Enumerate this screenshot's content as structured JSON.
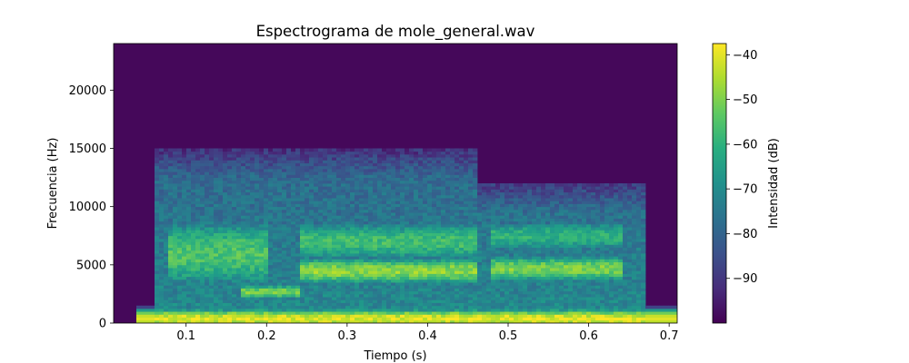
{
  "chart_data": {
    "type": "heatmap",
    "title": "Espectrograma de mole_general.wav",
    "xlabel": "Tiempo (s)",
    "ylabel": "Frecuencia (Hz)",
    "xlim": [
      0.01,
      0.71
    ],
    "ylim": [
      0,
      24000
    ],
    "x_ticks": [
      0.1,
      0.2,
      0.3,
      0.4,
      0.5,
      0.6,
      0.7
    ],
    "x_tick_labels": [
      "0.1",
      "0.2",
      "0.3",
      "0.4",
      "0.5",
      "0.6",
      "0.7"
    ],
    "y_ticks": [
      0,
      5000,
      10000,
      15000,
      20000
    ],
    "y_tick_labels": [
      "0",
      "5000",
      "10000",
      "15000",
      "20000"
    ],
    "colormap": "viridis",
    "colorbar": {
      "label": "Intensidad (dB)",
      "range": [
        -100,
        -37.5
      ],
      "ticks": [
        -40,
        -50,
        -60,
        -70,
        -80,
        -90
      ],
      "tick_labels": [
        "−40",
        "−50",
        "−60",
        "−70",
        "−80",
        "−90"
      ]
    },
    "background_db": -100,
    "segments": [
      {
        "t_start": 0.06,
        "t_end": 0.23,
        "f_max": 15000
      },
      {
        "t_start": 0.23,
        "t_end": 0.46,
        "f_max": 15000
      },
      {
        "t_start": 0.46,
        "t_end": 0.67,
        "f_max": 12000
      }
    ],
    "bands": [
      {
        "t_start": 0.04,
        "t_end": 0.71,
        "f_center": 400,
        "f_width": 600,
        "peak_db": -40
      },
      {
        "t_start": 0.17,
        "t_end": 0.24,
        "f_center": 2700,
        "f_width": 500,
        "peak_db": -50
      },
      {
        "t_start": 0.24,
        "t_end": 0.46,
        "f_center": 4500,
        "f_width": 900,
        "peak_db": -48
      },
      {
        "t_start": 0.48,
        "t_end": 0.64,
        "f_center": 4700,
        "f_width": 900,
        "peak_db": -50
      },
      {
        "t_start": 0.08,
        "t_end": 0.2,
        "f_center": 6000,
        "f_width": 2500,
        "peak_db": -55
      },
      {
        "t_start": 0.24,
        "t_end": 0.46,
        "f_center": 7000,
        "f_width": 1500,
        "peak_db": -57
      },
      {
        "t_start": 0.48,
        "t_end": 0.64,
        "f_center": 7500,
        "f_width": 1200,
        "peak_db": -60
      }
    ]
  }
}
